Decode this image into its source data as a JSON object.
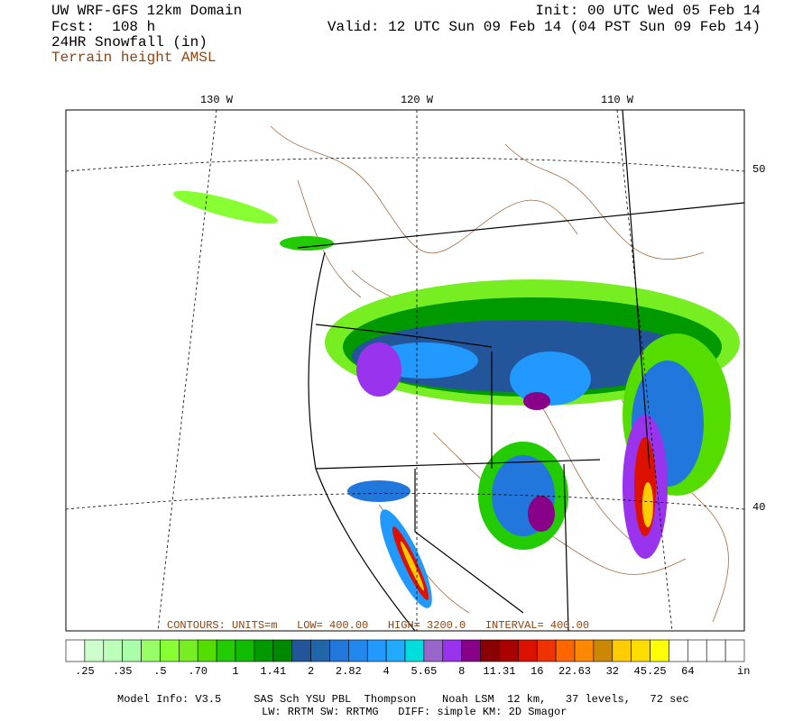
{
  "header": {
    "title": "UW WRF-GFS 12km Domain",
    "forecast": "Fcst:  108 h",
    "field": "24HR Snowfall (in)",
    "contour_field": "Terrain height AMSL",
    "init": "Init: 00 UTC Wed 05 Feb 14",
    "valid": "Valid: 12 UTC Sun 09 Feb 14 (04 PST Sun 09 Feb 14)"
  },
  "map": {
    "lon_labels": [
      "130 W",
      "120 W",
      "110 W"
    ],
    "lat_labels": [
      "50",
      "40"
    ],
    "contour_info": "CONTOURS: UNITS=m   LOW= 400.00   HIGH= 3200.0   INTERVAL= 400.00"
  },
  "colorbar": {
    "labels": [
      ".25",
      ".35",
      ".5",
      ".70",
      "1",
      "1.41",
      "2",
      "2.82",
      "4",
      "5.65",
      "8",
      "11.31",
      "16",
      "22.63",
      "32",
      "45.25",
      "64"
    ],
    "unit": "in",
    "colors": [
      "#ffffff",
      "#ccffcc",
      "#bbffbb",
      "#aaffaa",
      "#99ff66",
      "#88ff33",
      "#77ee22",
      "#55dd00",
      "#22cc00",
      "#11bb00",
      "#009900",
      "#008800",
      "#225599",
      "#2266aa",
      "#2277dd",
      "#2288ee",
      "#2299ff",
      "#22aaff",
      "#00dddd",
      "#9966cc",
      "#9933ee",
      "#880088",
      "#8b0000",
      "#aa0000",
      "#dd1100",
      "#ee3300",
      "#ff6600",
      "#ff8800",
      "#cc8800",
      "#ffcc00",
      "#ffdd00",
      "#ffff00",
      "#ffffff",
      "#ffffff",
      "#ffffff",
      "#ffffff"
    ]
  },
  "footer": {
    "line1": "Model Info: V3.5     SAS Sch YSU PBL  Thompson    Noah LSM  12 km,   37 levels,   72 sec",
    "line2": "LW: RRTM SW: RRTMG   DIFF: simple KM: 2D Smagor"
  }
}
